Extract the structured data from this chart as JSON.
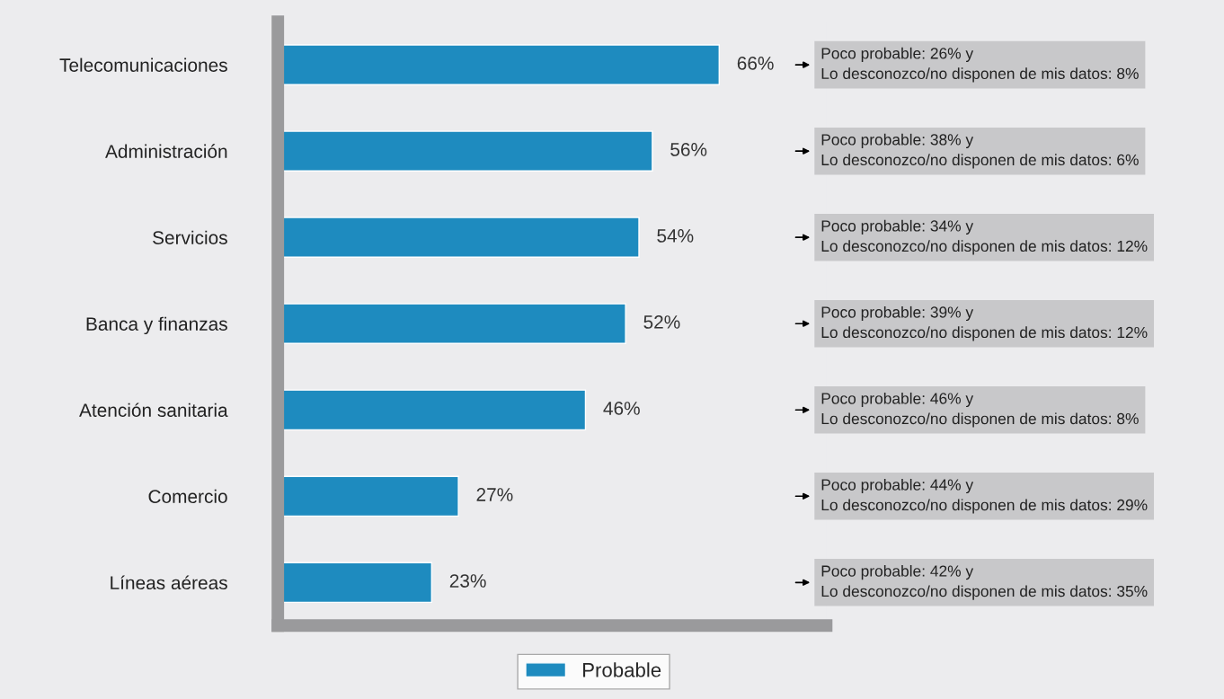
{
  "chart_data": {
    "type": "bar",
    "orientation": "horizontal",
    "categories": [
      "Telecomunicaciones",
      "Administración",
      "Servicios",
      "Banca y finanzas",
      "Atención sanitaria",
      "Comercio",
      "Líneas aéreas"
    ],
    "series": [
      {
        "name": "Probable",
        "color": "#1e8bbf",
        "values": [
          66,
          56,
          54,
          52,
          46,
          27,
          23
        ],
        "value_labels": [
          "66%",
          "56%",
          "54%",
          "52%",
          "46%",
          "27%",
          "23%"
        ]
      }
    ],
    "xlim": [
      0,
      82
    ],
    "tick_labels": "y",
    "grid": false,
    "legend": "bottom",
    "annotations": [
      "Poco probable: 26% y\nLo desconozco/no disponen de mis datos: 8%",
      "Poco probable: 38% y\nLo desconozco/no disponen de mis datos: 6%",
      "Poco probable: 34% y\nLo desconozco/no disponen de mis datos: 12%",
      "Poco probable: 39% y\nLo desconozco/no disponen de mis datos: 12%",
      "Poco probable: 46% y\nLo desconozco/no disponen de mis datos: 8%",
      "Poco probable: 44% y\nLo desconozco/no disponen de mis datos: 29%",
      "Poco probable: 42% y\nLo desconozco/no disponen de mis datos: 35%"
    ]
  }
}
